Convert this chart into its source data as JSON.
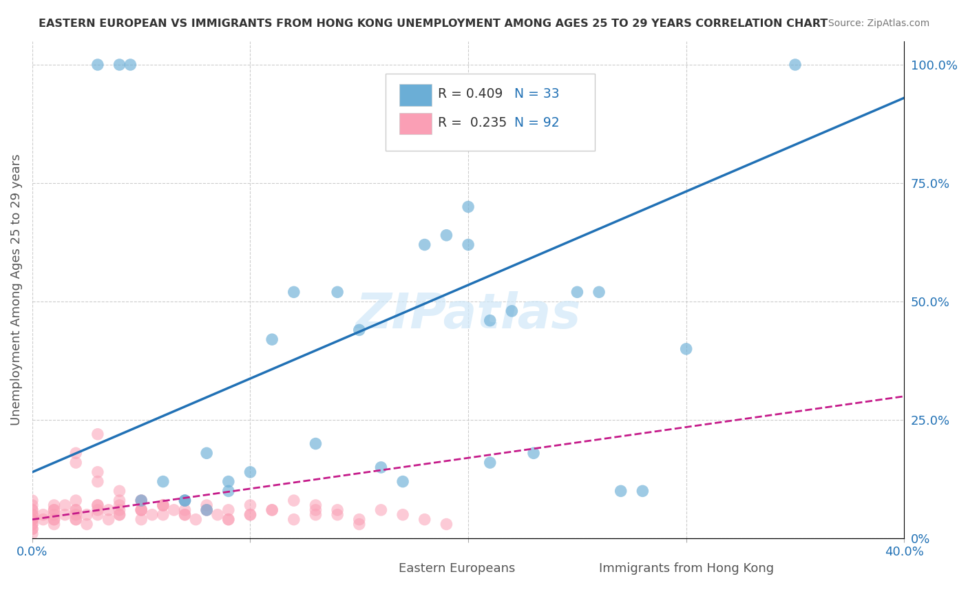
{
  "title": "EASTERN EUROPEAN VS IMMIGRANTS FROM HONG KONG UNEMPLOYMENT AMONG AGES 25 TO 29 YEARS CORRELATION CHART",
  "source": "Source: ZipAtlas.com",
  "xlabel_bottom": "",
  "ylabel": "Unemployment Among Ages 25 to 29 years",
  "xlim": [
    0.0,
    0.4
  ],
  "ylim": [
    0.0,
    1.05
  ],
  "x_ticks": [
    0.0,
    0.1,
    0.2,
    0.3,
    0.4
  ],
  "x_tick_labels": [
    "0.0%",
    "",
    "",
    "",
    "40.0%"
  ],
  "y_tick_labels_right": [
    "0%",
    "25.0%",
    "50.0%",
    "75.0%",
    "100.0%"
  ],
  "y_ticks_right": [
    0.0,
    0.25,
    0.5,
    0.75,
    1.0
  ],
  "blue_scatter": {
    "x": [
      0.03,
      0.04,
      0.045,
      0.05,
      0.06,
      0.07,
      0.08,
      0.09,
      0.1,
      0.11,
      0.12,
      0.13,
      0.14,
      0.16,
      0.17,
      0.18,
      0.19,
      0.2,
      0.21,
      0.22,
      0.23,
      0.3,
      0.25,
      0.26,
      0.27,
      0.28,
      0.07,
      0.08,
      0.09,
      0.15,
      0.2,
      0.21,
      0.35
    ],
    "y": [
      1.0,
      1.0,
      1.0,
      0.08,
      0.12,
      0.08,
      0.06,
      0.1,
      0.14,
      0.42,
      0.52,
      0.2,
      0.52,
      0.15,
      0.12,
      0.62,
      0.64,
      0.62,
      0.46,
      0.48,
      0.18,
      0.4,
      0.52,
      0.52,
      0.1,
      0.1,
      0.08,
      0.18,
      0.12,
      0.44,
      0.7,
      0.16,
      1.0
    ]
  },
  "pink_scatter": {
    "x": [
      0.0,
      0.0,
      0.0,
      0.0,
      0.0,
      0.0,
      0.0,
      0.0,
      0.0,
      0.0,
      0.01,
      0.01,
      0.01,
      0.01,
      0.01,
      0.02,
      0.02,
      0.02,
      0.02,
      0.03,
      0.03,
      0.03,
      0.04,
      0.04,
      0.04,
      0.05,
      0.05,
      0.05,
      0.06,
      0.06,
      0.07,
      0.07,
      0.08,
      0.09,
      0.1,
      0.1,
      0.11,
      0.12,
      0.13,
      0.13,
      0.14,
      0.15,
      0.16,
      0.17,
      0.18,
      0.19,
      0.0,
      0.0,
      0.0,
      0.0,
      0.005,
      0.005,
      0.01,
      0.01,
      0.015,
      0.015,
      0.02,
      0.02,
      0.025,
      0.025,
      0.03,
      0.03,
      0.035,
      0.035,
      0.04,
      0.05,
      0.06,
      0.07,
      0.08,
      0.09,
      0.1,
      0.11,
      0.12,
      0.13,
      0.14,
      0.15,
      0.02,
      0.02,
      0.03,
      0.03,
      0.04,
      0.04,
      0.05,
      0.05,
      0.055,
      0.06,
      0.065,
      0.07,
      0.075,
      0.08,
      0.085,
      0.09
    ],
    "y": [
      0.04,
      0.05,
      0.03,
      0.02,
      0.06,
      0.07,
      0.08,
      0.01,
      0.04,
      0.02,
      0.03,
      0.05,
      0.06,
      0.04,
      0.07,
      0.04,
      0.06,
      0.08,
      0.05,
      0.22,
      0.06,
      0.07,
      0.05,
      0.07,
      0.06,
      0.08,
      0.06,
      0.04,
      0.07,
      0.05,
      0.06,
      0.08,
      0.07,
      0.06,
      0.05,
      0.07,
      0.06,
      0.08,
      0.07,
      0.06,
      0.05,
      0.03,
      0.06,
      0.05,
      0.04,
      0.03,
      0.03,
      0.04,
      0.05,
      0.06,
      0.04,
      0.05,
      0.04,
      0.06,
      0.05,
      0.07,
      0.06,
      0.04,
      0.05,
      0.03,
      0.07,
      0.05,
      0.06,
      0.04,
      0.05,
      0.06,
      0.07,
      0.05,
      0.06,
      0.04,
      0.05,
      0.06,
      0.04,
      0.05,
      0.06,
      0.04,
      0.16,
      0.18,
      0.14,
      0.12,
      0.1,
      0.08,
      0.08,
      0.06,
      0.05,
      0.07,
      0.06,
      0.05,
      0.04,
      0.06,
      0.05,
      0.04
    ]
  },
  "blue_line": {
    "x": [
      0.0,
      0.4
    ],
    "y": [
      0.14,
      0.93
    ]
  },
  "pink_line": {
    "x": [
      0.0,
      0.4
    ],
    "y": [
      0.04,
      0.3
    ]
  },
  "legend_R_blue": "R = 0.409",
  "legend_N_blue": "N = 33",
  "legend_R_pink": "R = 0.235",
  "legend_N_pink": "N = 92",
  "blue_color": "#6baed6",
  "blue_line_color": "#2171b5",
  "pink_color": "#fa9fb5",
  "pink_line_color": "#c51b8a",
  "text_color_blue": "#2171b5",
  "watermark": "ZIPatlas",
  "background_color": "#ffffff",
  "grid_color": "#cccccc"
}
